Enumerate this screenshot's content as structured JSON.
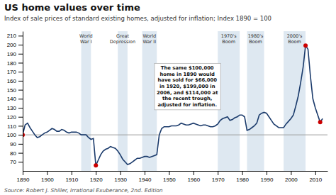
{
  "chart_data": {
    "type": "line",
    "title": "US home values over time",
    "subtitle": "Index of sale prices of standard existing homes, adjusted for inflation; Index 1890 = 100",
    "source": "Source: Robert J. Shiller, Irrational Exuberance, 2nd. Edition",
    "color": "#1a3a6b",
    "grid": false,
    "xlim": [
      1890,
      2015
    ],
    "ylim": [
      60,
      215
    ],
    "xticks": [
      1890,
      1900,
      1910,
      1920,
      1930,
      1940,
      1950,
      1960,
      1970,
      1980,
      1990,
      2000,
      2010
    ],
    "yticks": [
      70,
      80,
      90,
      100,
      110,
      120,
      130,
      140,
      150,
      160,
      170,
      180,
      190,
      200,
      210
    ],
    "x": [
      1890,
      1891,
      1892,
      1893,
      1894,
      1895,
      1896,
      1897,
      1898,
      1899,
      1900,
      1901,
      1902,
      1903,
      1904,
      1905,
      1906,
      1907,
      1908,
      1909,
      1910,
      1911,
      1912,
      1913,
      1914,
      1915,
      1916,
      1917,
      1918,
      1919,
      1920,
      1921,
      1922,
      1923,
      1924,
      1925,
      1926,
      1927,
      1928,
      1929,
      1930,
      1931,
      1932,
      1933,
      1934,
      1935,
      1936,
      1937,
      1938,
      1939,
      1940,
      1941,
      1942,
      1943,
      1944,
      1945,
      1946,
      1947,
      1948,
      1949,
      1950,
      1951,
      1952,
      1953,
      1954,
      1955,
      1956,
      1957,
      1958,
      1959,
      1960,
      1961,
      1962,
      1963,
      1964,
      1965,
      1966,
      1967,
      1968,
      1969,
      1970,
      1971,
      1972,
      1973,
      1974,
      1975,
      1976,
      1977,
      1978,
      1979,
      1980,
      1981,
      1982,
      1983,
      1984,
      1985,
      1986,
      1987,
      1988,
      1989,
      1990,
      1991,
      1992,
      1993,
      1994,
      1995,
      1996,
      1997,
      1998,
      1999,
      2000,
      2001,
      2002,
      2003,
      2004,
      2005,
      2006,
      2007,
      2008,
      2009,
      2010,
      2011,
      2012,
      2013
    ],
    "values": [
      100,
      111,
      113,
      108,
      104,
      100,
      97,
      98,
      100,
      102,
      103,
      105,
      107,
      106,
      104,
      104,
      106,
      105,
      103,
      102,
      103,
      103,
      103,
      102,
      100,
      100,
      100,
      97,
      95,
      96,
      66,
      72,
      78,
      82,
      84,
      85,
      87,
      86,
      85,
      82,
      78,
      73,
      70,
      67,
      68,
      70,
      72,
      74,
      74,
      75,
      76,
      76,
      75,
      76,
      77,
      78,
      100,
      107,
      109,
      109,
      109,
      110,
      110,
      110,
      111,
      113,
      112,
      111,
      111,
      112,
      113,
      112,
      111,
      110,
      111,
      111,
      110,
      109,
      109,
      110,
      112,
      116,
      118,
      119,
      120,
      116,
      117,
      119,
      120,
      122,
      122,
      120,
      105,
      106,
      108,
      110,
      113,
      122,
      124,
      125,
      124,
      120,
      116,
      112,
      110,
      108,
      108,
      108,
      112,
      115,
      118,
      122,
      132,
      143,
      158,
      175,
      199,
      195,
      165,
      140,
      130,
      122,
      114,
      118
    ],
    "baseline": 100,
    "shaded_regions": [
      {
        "xmin": 1914,
        "xmax": 1918,
        "label": "World\nWar I"
      },
      {
        "xmin": 1929,
        "xmax": 1933,
        "label": "Great\nDepression"
      },
      {
        "xmin": 1939,
        "xmax": 1945,
        "label": "World\nWar II"
      },
      {
        "xmin": 1970,
        "xmax": 1979,
        "label": "1970's\nBoom"
      },
      {
        "xmin": 1982,
        "xmax": 1989,
        "label": "1980's\nBoom"
      },
      {
        "xmin": 1997,
        "xmax": 2006,
        "label": "2000's\nBoom"
      }
    ],
    "annotation": "The same $100,000\nhome in 1890 would\nhave sold for $66,000\nin 1920, $199,000 in\n2006, and $114,000 at\nthe recent trough,\nadjusted for inflation.",
    "red_dots": {
      "color": "#cc0000",
      "points": [
        {
          "x": 1890,
          "y": 100
        },
        {
          "x": 1920,
          "y": 66
        },
        {
          "x": 2006,
          "y": 199
        },
        {
          "x": 2012,
          "y": 114
        }
      ]
    }
  }
}
